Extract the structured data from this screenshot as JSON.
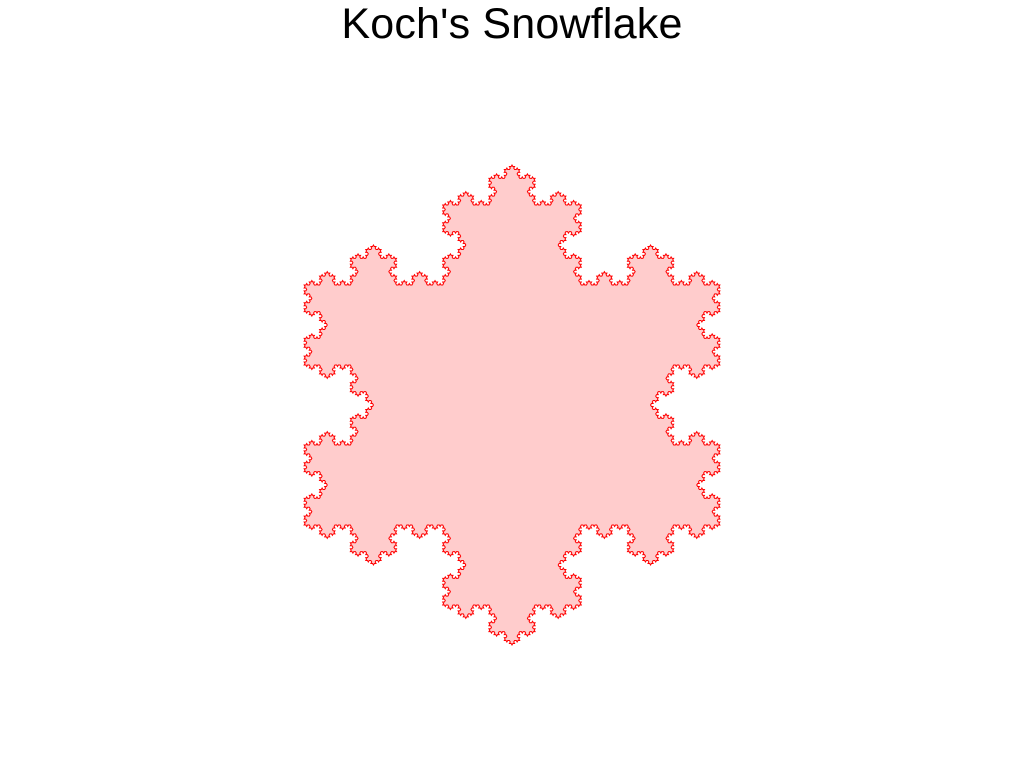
{
  "figure": {
    "title": "Koch's Snowflake"
  },
  "snowflake": {
    "iterations": 5,
    "fill_color": "#ffcccc",
    "stroke_color": "#ff0000"
  }
}
